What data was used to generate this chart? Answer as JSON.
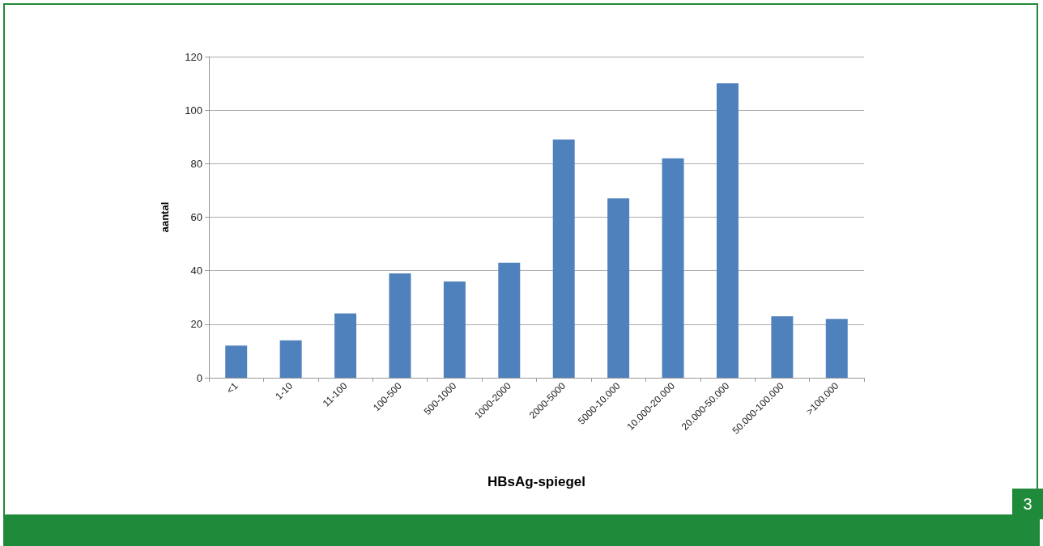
{
  "chart_data": {
    "type": "bar",
    "xlabel": "HBsAg-spiegel",
    "ylabel": "aantal",
    "categories": [
      "<1",
      "1-10",
      "11-100",
      "100-500",
      "500-1000",
      "1000-2000",
      "2000-5000",
      "5000-10.000",
      "10.000-20.000",
      "20.000-50.000",
      "50.000-100.000",
      ">100.000"
    ],
    "values": [
      12,
      14,
      24,
      39,
      36,
      43,
      89,
      67,
      82,
      110,
      23,
      22
    ],
    "color": "#4f81bd",
    "ylim": [
      0,
      120
    ],
    "yticks": [
      0,
      20,
      40,
      60,
      80,
      100,
      120
    ],
    "grid": "y",
    "annotations": [
      "3"
    ]
  }
}
